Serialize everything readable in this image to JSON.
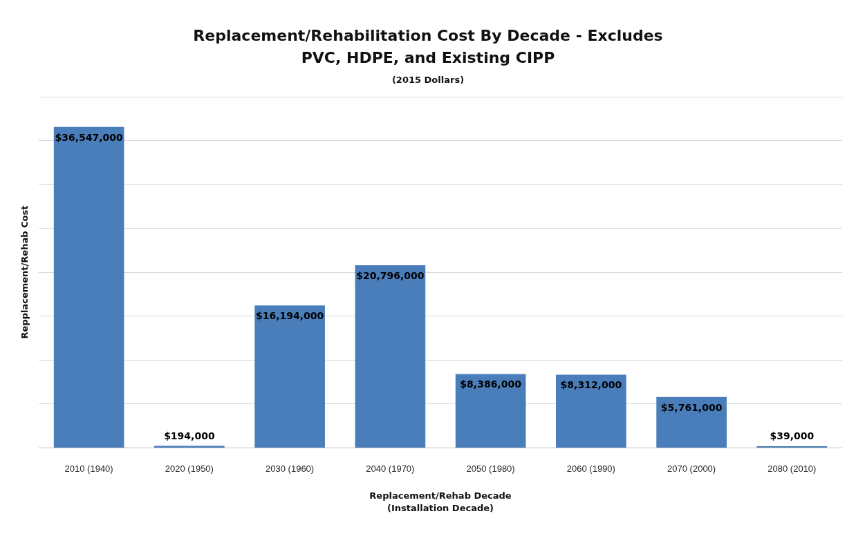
{
  "chart_data": {
    "type": "bar",
    "title": "Replacement/Rehabilitation Cost By Decade - Excludes\nPVC, HDPE, and Existing CIPP",
    "subtitle": "(2015 Dollars)",
    "xlabel": "Replacement/Rehab Decade\n(Installation Decade)",
    "ylabel": "Repplacement/Rehab Cost",
    "categories": [
      "2010 (1940)",
      "2020 (1950)",
      "2030 (1960)",
      "2040 (1970)",
      "2050 (1980)",
      "2060 (1990)",
      "2070 (2000)",
      "2080 (2010)"
    ],
    "values": [
      36547000,
      194000,
      16194000,
      20796000,
      8386000,
      8312000,
      5761000,
      39000
    ],
    "value_labels": [
      "$36,547,000",
      "$194,000",
      "$16,194,000",
      "$20,796,000",
      "$8,386,000",
      "$8,312,000",
      "$5,761,000",
      "$39,000"
    ],
    "color": "#4a7ebb",
    "ylim": [
      0,
      40000000
    ],
    "yticks": [
      {
        "value": 0,
        "label": null
      },
      {
        "value": 5000000,
        "label": null
      },
      {
        "value": 10000000,
        "label": null
      },
      {
        "value": 15000000,
        "label": null
      },
      {
        "value": 20000000,
        "label": null
      },
      {
        "value": 25000000,
        "label": null
      },
      {
        "value": 30000000,
        "label": null
      },
      {
        "value": 35000000,
        "label": null
      },
      {
        "value": 40000000,
        "label": null
      }
    ],
    "grid": "y",
    "tick_labels": "x"
  }
}
